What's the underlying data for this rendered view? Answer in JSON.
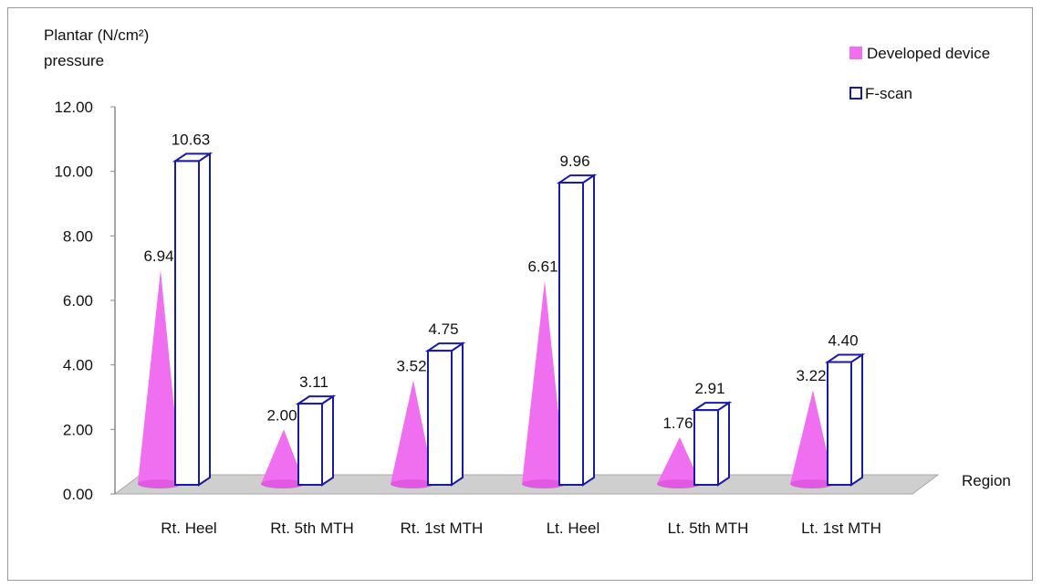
{
  "chart_data": {
    "type": "bar",
    "ylabel_line1": "Plantar  (N/cm²)",
    "ylabel_line2": "pressure",
    "xlabel": "Region",
    "categories": [
      "Rt. Heel",
      "Rt. 5th MTH",
      "Rt. 1st MTH",
      "Lt. Heel",
      "Lt. 5th MTH",
      "Lt. 1st MTH"
    ],
    "series": [
      {
        "name": "Developed device",
        "values": [
          6.94,
          2.0,
          3.52,
          6.61,
          1.76,
          3.22
        ],
        "labels": [
          "6.94",
          "2.00",
          "3.52",
          "6.61",
          "1.76",
          "3.22"
        ],
        "color": "#f06ef0"
      },
      {
        "name": "F-scan",
        "values": [
          10.63,
          3.11,
          4.75,
          9.96,
          2.91,
          4.4
        ],
        "labels": [
          "10.63",
          "3.11",
          "4.75",
          "9.96",
          "2.91",
          "4.40"
        ],
        "color": "#1a1aa8"
      }
    ],
    "yticks": [
      "0.00",
      "2.00",
      "4.00",
      "6.00",
      "8.00",
      "10.00",
      "12.00"
    ],
    "ylim": [
      0,
      12
    ],
    "grid": false,
    "legend_position": "top-right"
  }
}
